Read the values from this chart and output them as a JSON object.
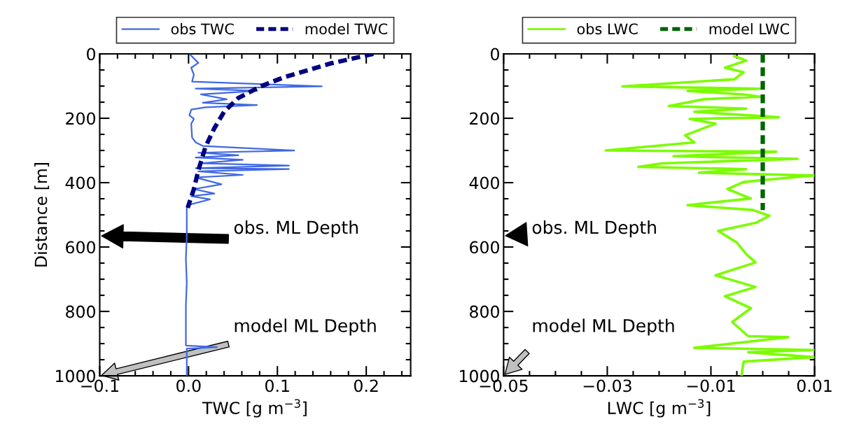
{
  "chart_data": [
    {
      "type": "line",
      "xlabel": "TWC [g m$^{−3}$]",
      "ylabel": "Distance [m]",
      "legend": "top",
      "grid": false,
      "xlim": [
        -0.1,
        0.25
      ],
      "xticks": [
        {
          "value": -0.1,
          "label": "−0.1"
        },
        {
          "value": -0.08,
          "label": null
        },
        {
          "value": -0.06,
          "label": null
        },
        {
          "value": -0.04,
          "label": null
        },
        {
          "value": -0.02,
          "label": null
        },
        {
          "value": 0.0,
          "label": "0.0"
        },
        {
          "value": 0.02,
          "label": null
        },
        {
          "value": 0.04,
          "label": null
        },
        {
          "value": 0.06,
          "label": null
        },
        {
          "value": 0.08,
          "label": null
        },
        {
          "value": 0.1,
          "label": "0.1"
        },
        {
          "value": 0.12,
          "label": null
        },
        {
          "value": 0.14,
          "label": null
        },
        {
          "value": 0.16,
          "label": null
        },
        {
          "value": 0.18,
          "label": null
        },
        {
          "value": 0.2,
          "label": "0.2"
        },
        {
          "value": 0.22,
          "label": null
        },
        {
          "value": 0.24,
          "label": null
        }
      ],
      "ylim": [
        1000,
        0
      ],
      "yticks": [
        0,
        {
          "value": 50,
          "label": null
        },
        {
          "value": 100,
          "label": null
        },
        {
          "value": 150,
          "label": null
        },
        200,
        {
          "value": 250,
          "label": null
        },
        {
          "value": 300,
          "label": null
        },
        {
          "value": 350,
          "label": null
        },
        400,
        {
          "value": 450,
          "label": null
        },
        {
          "value": 500,
          "label": null
        },
        {
          "value": 550,
          "label": null
        },
        600,
        {
          "value": 650,
          "label": null
        },
        {
          "value": 700,
          "label": null
        },
        {
          "value": 750,
          "label": null
        },
        800,
        {
          "value": 850,
          "label": null
        },
        {
          "value": 900,
          "label": null
        },
        {
          "value": 950,
          "label": null
        },
        1000
      ],
      "annotations": [
        "obs. ML Depth",
        "model ML Depth"
      ],
      "series": [
        {
          "name": "obs TWC",
          "color": "#4169e1",
          "line_style": "solid",
          "x": [
            0.002,
            0.011,
            0.003,
            0.006,
            0.004,
            0.15,
            0.008,
            0.077,
            0.014,
            0.043,
            0.016,
            0.077,
            0.019,
            0.003,
            0.001,
            0.006,
            0.003,
            0.004,
            0.008,
            0.016,
            0.119,
            0.011,
            0.056,
            0.008,
            0.061,
            0.014,
            0.113,
            0.008,
            0.113,
            0.011,
            0.061,
            0.008,
            0.037,
            0.006,
            0.029,
            0.003,
            0.024,
            0.003,
            -0.002,
            -0.002,
            -0.003,
            -0.002,
            -0.003,
            -0.003,
            0.032,
            -0.002,
            -0.002
          ],
          "values": [
            3,
            28,
            43,
            65,
            86,
            101,
            108,
            115,
            126,
            141,
            152,
            159,
            166,
            173,
            191,
            202,
            217,
            260,
            275,
            286,
            300,
            307,
            315,
            322,
            329,
            340,
            347,
            355,
            358,
            365,
            376,
            384,
            405,
            420,
            434,
            442,
            452,
            467,
            478,
            565,
            637,
            710,
            782,
            906,
            911,
            916,
            1000
          ]
        },
        {
          "name": "model TWC",
          "color": "#000080",
          "line_style": "dashed",
          "x": [
            0.208,
            0.161,
            0.108,
            0.082,
            0.056,
            0.04,
            0.029,
            0.019,
            0.011,
            0.006,
            -0.001
          ],
          "values": [
            0,
            29,
            72,
            100,
            137,
            180,
            231,
            289,
            362,
            420,
            478
          ]
        }
      ]
    },
    {
      "type": "line",
      "xlabel": "LWC [g m$^{−3}$]",
      "legend": "top",
      "grid": false,
      "xlim": [
        -0.05,
        0.01
      ],
      "xticks": [
        {
          "value": -0.05,
          "label": "−0.05"
        },
        {
          "value": -0.045,
          "label": null
        },
        {
          "value": -0.04,
          "label": null
        },
        {
          "value": -0.035,
          "label": null
        },
        {
          "value": -0.03,
          "label": "−0.03"
        },
        {
          "value": -0.025,
          "label": null
        },
        {
          "value": -0.02,
          "label": null
        },
        {
          "value": -0.015,
          "label": null
        },
        {
          "value": -0.01,
          "label": "−0.01"
        },
        {
          "value": -0.005,
          "label": null
        },
        {
          "value": 0.0,
          "label": null
        },
        {
          "value": 0.005,
          "label": null
        },
        {
          "value": 0.01,
          "label": "0.01"
        }
      ],
      "ylim": [
        1000,
        0
      ],
      "yticks": [
        0,
        {
          "value": 50,
          "label": null
        },
        {
          "value": 100,
          "label": null
        },
        {
          "value": 150,
          "label": null
        },
        200,
        {
          "value": 250,
          "label": null
        },
        {
          "value": 300,
          "label": null
        },
        {
          "value": 350,
          "label": null
        },
        400,
        {
          "value": 450,
          "label": null
        },
        {
          "value": 500,
          "label": null
        },
        {
          "value": 550,
          "label": null
        },
        600,
        {
          "value": 650,
          "label": null
        },
        {
          "value": 700,
          "label": null
        },
        {
          "value": 750,
          "label": null
        },
        800,
        {
          "value": 850,
          "label": null
        },
        {
          "value": 900,
          "label": null
        },
        {
          "value": 950,
          "label": null
        },
        1000
      ],
      "annotations": [
        "obs. ML Depth",
        "model ML Depth"
      ],
      "series": [
        {
          "name": "obs LWC",
          "color": "#7cfc00",
          "line_style": "solid",
          "x": [
            -0.0055,
            -0.0032,
            -0.0073,
            -0.0037,
            -0.0055,
            -0.0271,
            -0.0005,
            -0.0145,
            -0.0037,
            -0.0005,
            -0.0114,
            -0.0181,
            -0.0032,
            -0.0132,
            0.0031,
            -0.0141,
            -0.0091,
            -0.015,
            -0.0132,
            -0.0303,
            0.0026,
            -0.0172,
            0.0067,
            -0.0195,
            -0.024,
            -0.0032,
            -0.0123,
            0.0098,
            0.0053,
            -0.0037,
            -0.0068,
            -0.0023,
            -0.0145,
            -0.0019,
            0.0013,
            -0.0014,
            -0.0086,
            -0.005,
            -0.0032,
            -0.0014,
            -0.0091,
            -0.0014,
            -0.0073,
            -0.0023,
            -0.0059,
            -0.0028,
            0.0049,
            -0.005,
            -0.0132,
            0.0098,
            -0.0028,
            0.0098,
            -0.0037,
            -0.0041
          ],
          "values": [
            7,
            21,
            43,
            57,
            79,
            101,
            108,
            115,
            126,
            133,
            141,
            162,
            170,
            180,
            197,
            202,
            217,
            253,
            275,
            300,
            304,
            318,
            326,
            340,
            351,
            358,
            369,
            378,
            384,
            398,
            420,
            449,
            470,
            485,
            503,
            525,
            550,
            586,
            622,
            648,
            688,
            724,
            753,
            790,
            833,
            877,
            880,
            898,
            913,
            920,
            927,
            942,
            956,
            1000
          ]
        },
        {
          "name": "model LWC",
          "color": "#006400",
          "line_style": "dashed",
          "x": [
            0.0,
            0.0
          ],
          "values": [
            0,
            485
          ]
        }
      ]
    }
  ]
}
